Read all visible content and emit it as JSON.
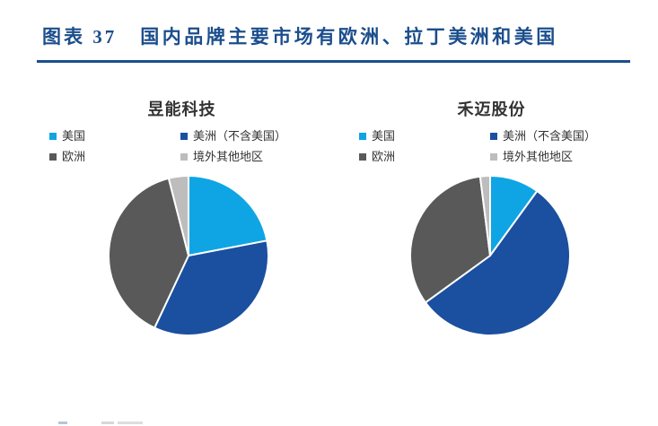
{
  "page": {
    "background": "#ffffff"
  },
  "header": {
    "label": "图表 37",
    "title": "国内品牌主要市场有欧洲、拉丁美洲和美国",
    "accent_color": "#1B4E8C"
  },
  "chart_data": [
    {
      "type": "pie",
      "title": "昱能科技",
      "categories": [
        "美国",
        "美洲（不含美国）",
        "欧洲",
        "境外其他地区"
      ],
      "values": [
        22,
        35,
        39,
        4
      ],
      "unit": "%",
      "values_estimated_from_angles": true,
      "colors": [
        "#0FA5E4",
        "#1B4F9F",
        "#595959",
        "#BDBDBD"
      ],
      "start_angle": 0,
      "direction": "clockwise",
      "legend_position": "top",
      "data_labels_shown": false
    },
    {
      "type": "pie",
      "title": "禾迈股份",
      "categories": [
        "美国",
        "美洲（不含美国）",
        "欧洲",
        "境外其他地区"
      ],
      "values": [
        10,
        55,
        33,
        2
      ],
      "unit": "%",
      "values_estimated_from_angles": true,
      "colors": [
        "#0FA5E4",
        "#1B4F9F",
        "#595959",
        "#BDBDBD"
      ],
      "start_angle": 0,
      "direction": "clockwise",
      "legend_position": "top",
      "data_labels_shown": false
    }
  ]
}
